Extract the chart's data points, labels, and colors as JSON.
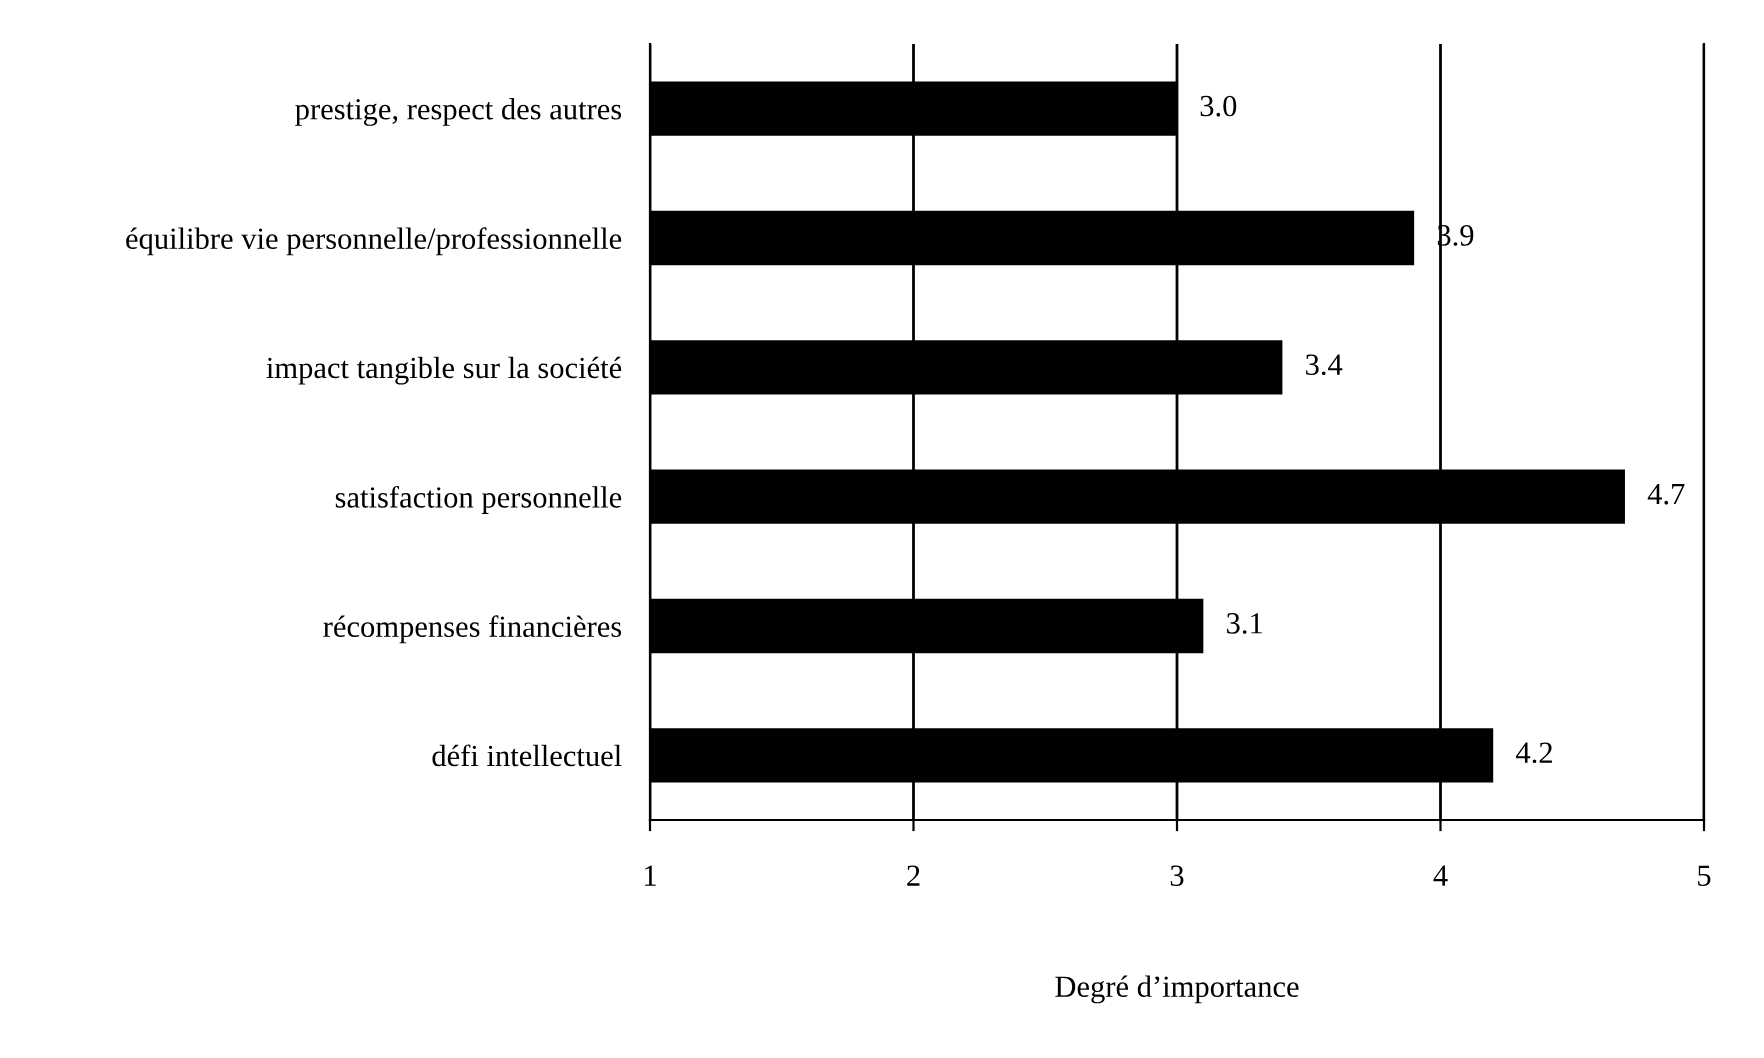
{
  "chart_data": {
    "type": "bar",
    "orientation": "horizontal",
    "xlabel": "Degré d’importance",
    "categories": [
      "prestige, respect des autres",
      "équilibre vie personnelle/professionnelle",
      "impact tangible sur la société",
      "satisfaction personnelle",
      "récompenses financières",
      "défi intellectuel"
    ],
    "values": [
      3.0,
      3.9,
      3.4,
      4.7,
      3.1,
      4.2
    ],
    "value_labels": [
      "3.0",
      "3.9",
      "3.4",
      "4.7",
      "3.1",
      "4.2"
    ],
    "color": "#000000",
    "xlim": [
      1,
      5
    ],
    "xticks": [
      1,
      2,
      3,
      4,
      5
    ],
    "grid": "x"
  }
}
